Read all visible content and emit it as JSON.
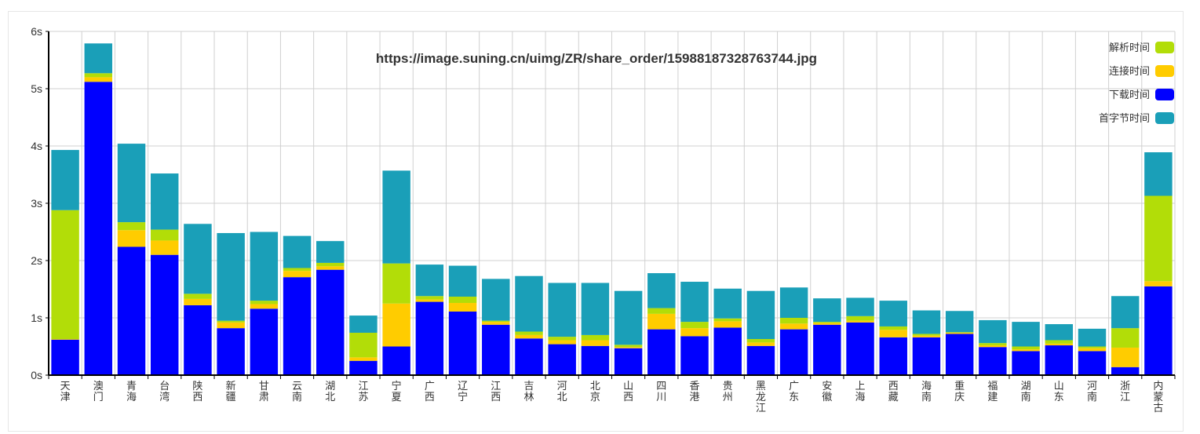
{
  "chart_data": {
    "type": "bar",
    "stacked": true,
    "title": "https://image.suning.cn/uimg/ZR/share_order/15988187328763744.jpg",
    "xlabel": "",
    "ylabel": "",
    "y_unit": "s",
    "ylim": [
      0,
      6
    ],
    "yticks": [
      0,
      1,
      2,
      3,
      4,
      5,
      6
    ],
    "grid": true,
    "legend_position": "top-right",
    "categories": [
      "天津",
      "澳门",
      "青海",
      "台湾",
      "陕西",
      "新疆",
      "甘肃",
      "云南",
      "湖北",
      "江苏",
      "宁夏",
      "广西",
      "辽宁",
      "江西",
      "吉林",
      "河北",
      "北京",
      "山西",
      "四川",
      "香港",
      "贵州",
      "黑龙江",
      "广东",
      "安徽",
      "上海",
      "西藏",
      "海南",
      "重庆",
      "福建",
      "湖南",
      "山东",
      "河南",
      "浙江",
      "内蒙古"
    ],
    "series": [
      {
        "name": "下载时间",
        "color": "#0000ff",
        "values": [
          0.62,
          5.12,
          2.24,
          2.1,
          1.22,
          0.82,
          1.16,
          1.71,
          1.84,
          0.25,
          0.5,
          1.28,
          1.11,
          0.88,
          0.64,
          0.54,
          0.51,
          0.47,
          0.8,
          0.68,
          0.83,
          0.51,
          0.8,
          0.88,
          0.92,
          0.66,
          0.66,
          0.72,
          0.49,
          0.42,
          0.52,
          0.42,
          0.14,
          1.55
        ]
      },
      {
        "name": "连接时间",
        "color": "#ffcc00",
        "values": [
          0.01,
          0.08,
          0.29,
          0.25,
          0.11,
          0.1,
          0.08,
          0.11,
          0.06,
          0.06,
          0.75,
          0.04,
          0.15,
          0.05,
          0.06,
          0.07,
          0.1,
          0.02,
          0.27,
          0.14,
          0.11,
          0.06,
          0.1,
          0.03,
          0.03,
          0.13,
          0.03,
          0.02,
          0.03,
          0.03,
          0.03,
          0.05,
          0.34,
          0.09
        ]
      },
      {
        "name": "解析时间",
        "color": "#b2dd08",
        "values": [
          2.25,
          0.07,
          0.14,
          0.19,
          0.09,
          0.03,
          0.06,
          0.05,
          0.06,
          0.43,
          0.7,
          0.06,
          0.11,
          0.02,
          0.06,
          0.06,
          0.09,
          0.04,
          0.1,
          0.11,
          0.05,
          0.06,
          0.1,
          0.02,
          0.08,
          0.06,
          0.03,
          0.01,
          0.04,
          0.05,
          0.06,
          0.03,
          0.34,
          1.49
        ]
      },
      {
        "name": "首字节时间",
        "color": "#1a9fb8",
        "values": [
          1.05,
          0.52,
          1.37,
          0.98,
          1.22,
          1.53,
          1.2,
          0.56,
          0.38,
          0.3,
          1.62,
          0.55,
          0.54,
          0.73,
          0.97,
          0.94,
          0.91,
          0.94,
          0.61,
          0.7,
          0.52,
          0.84,
          0.53,
          0.41,
          0.32,
          0.45,
          0.41,
          0.37,
          0.4,
          0.43,
          0.28,
          0.31,
          0.56,
          0.76
        ]
      }
    ]
  }
}
